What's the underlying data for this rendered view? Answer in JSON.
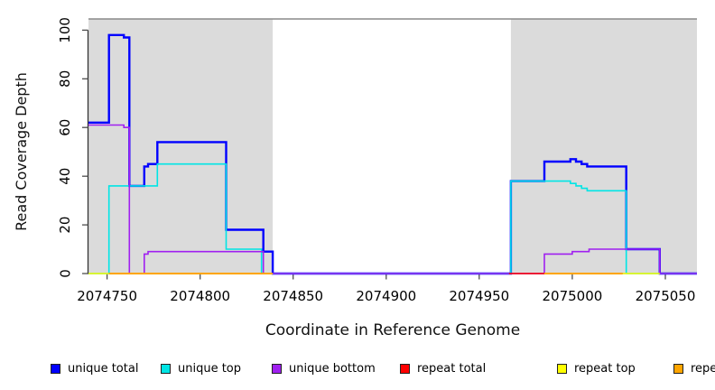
{
  "chart_data": {
    "type": "line",
    "step": true,
    "title": "",
    "xlabel": "Coordinate in Reference Genome",
    "ylabel": "Read Coverage Depth",
    "xlim": [
      2074740,
      2075067
    ],
    "ylim": [
      0,
      105
    ],
    "x_ticks": [
      2074750,
      2074800,
      2074850,
      2074900,
      2074950,
      2075000,
      2075050
    ],
    "y_ticks": [
      0,
      20,
      40,
      60,
      80,
      100
    ],
    "grid": false,
    "legend_position": "bottom",
    "region_color": "#DBDBDB",
    "region_boundary_color": "#8A8A8A",
    "region_top_y": 104.6,
    "shaded_regions": [
      [
        2074740,
        2074839
      ],
      [
        2074967,
        2075067
      ]
    ],
    "axis_color": "#333333",
    "tick_color": "#4d4d4d",
    "series": [
      {
        "name": "unique-total",
        "label": "unique total",
        "color": "#0000FF",
        "line_width": 2.4,
        "segments": [
          {
            "points": [
              [
                2074740,
                62
              ],
              [
                2074751,
                98
              ],
              [
                2074759,
                97
              ],
              [
                2074762,
                36
              ],
              [
                2074770,
                44
              ],
              [
                2074772,
                45
              ],
              [
                2074777,
                54
              ],
              [
                2074814,
                18
              ],
              [
                2074834,
                9
              ],
              [
                2074839,
                0
              ],
              [
                2074967,
                38
              ],
              [
                2074985,
                46
              ],
              [
                2074999,
                47
              ],
              [
                2075002,
                46
              ],
              [
                2075005,
                45
              ],
              [
                2075008,
                44
              ],
              [
                2075029,
                10
              ],
              [
                2075047,
                0
              ]
            ],
            "end": 2075067
          }
        ]
      },
      {
        "name": "unique-top",
        "label": "unique top",
        "color": "#00E5E5",
        "line_width": 1.6,
        "segments": [
          {
            "points": [
              [
                2074740,
                0
              ],
              [
                2074751,
                36
              ],
              [
                2074777,
                45
              ],
              [
                2074814,
                10
              ],
              [
                2074833,
                0
              ],
              [
                2074967,
                38
              ],
              [
                2074999,
                37
              ],
              [
                2075002,
                36
              ],
              [
                2075005,
                35
              ],
              [
                2075008,
                34
              ],
              [
                2075029,
                0
              ]
            ],
            "end": 2075067
          }
        ]
      },
      {
        "name": "unique-bottom",
        "label": "unique bottom",
        "color": "#A020F0",
        "line_width": 1.6,
        "segments": [
          {
            "points": [
              [
                2074740,
                61
              ],
              [
                2074759,
                60
              ],
              [
                2074762,
                0
              ],
              [
                2074770,
                8
              ],
              [
                2074772,
                9
              ],
              [
                2074834,
                0
              ],
              [
                2074985,
                8
              ],
              [
                2075000,
                9
              ],
              [
                2075009,
                10
              ],
              [
                2075047,
                0
              ]
            ],
            "end": 2075067
          }
        ]
      },
      {
        "name": "repeat-total",
        "label": "repeat total",
        "color": "#FF0000",
        "line_width": 1.6,
        "segments": [
          {
            "points": [
              [
                2074966,
                0
              ]
            ],
            "end": 2074985
          }
        ]
      },
      {
        "name": "repeat-top",
        "label": "repeat top",
        "color": "#FFFF00",
        "line_width": 1.6,
        "segments": [
          {
            "points": [
              [
                2074740,
                0
              ]
            ],
            "end": 2074751
          },
          {
            "points": [
              [
                2075027,
                0
              ]
            ],
            "end": 2075047
          }
        ]
      },
      {
        "name": "repeat-bottom",
        "label": "repeat bottom",
        "color": "#FFA500",
        "line_width": 2,
        "segments": [
          {
            "points": [
              [
                2074751,
                0
              ]
            ],
            "end": 2074839
          },
          {
            "points": [
              [
                2074985,
                0
              ]
            ],
            "end": 2075027
          }
        ]
      }
    ]
  },
  "legend": {
    "items": [
      "unique total",
      "unique top",
      "unique bottom",
      "repeat total",
      "repeat top",
      "repeat bottom"
    ]
  }
}
